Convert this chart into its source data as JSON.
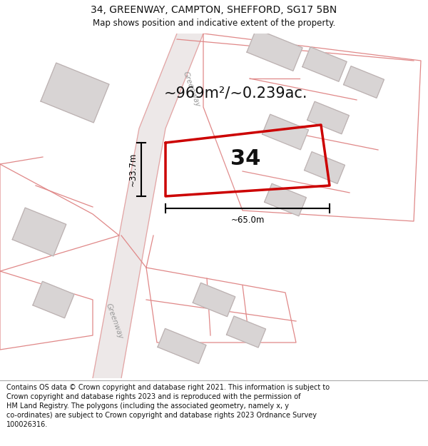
{
  "title": "34, GREENWAY, CAMPTON, SHEFFORD, SG17 5BN",
  "subtitle": "Map shows position and indicative extent of the property.",
  "footer": "Contains OS data © Crown copyright and database right 2021. This information is subject to\nCrown copyright and database rights 2023 and is reproduced with the permission of\nHM Land Registry. The polygons (including the associated geometry, namely x, y\nco-ordinates) are subject to Crown copyright and database rights 2023 Ordnance Survey\n100026316.",
  "area_label": "~969m²/~0.239ac.",
  "number_label": "34",
  "width_label": "~65.0m",
  "height_label": "~33.7m",
  "background_color": "#ffffff",
  "building_fill": "#d8d4d4",
  "building_stroke": "#bbb0b0",
  "red_line_color": "#cc0000",
  "pink_line_color": "#e08888",
  "road_label": "Greenway",
  "title_fontsize": 10,
  "subtitle_fontsize": 8.5,
  "footer_fontsize": 7,
  "area_fontsize": 15,
  "number_fontsize": 22
}
